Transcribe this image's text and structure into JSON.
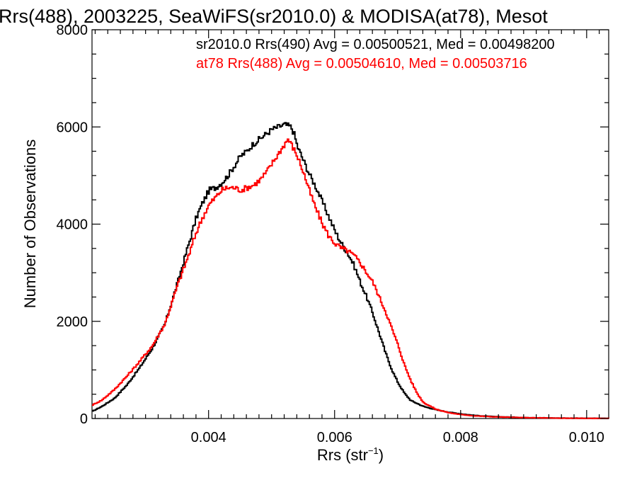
{
  "chart_data": {
    "type": "line",
    "title": "Rrs(488), 2003225, SeaWiFS(sr2010.0) & MODISA(at78), Mesot",
    "xlabel_main": "Rrs (str",
    "xlabel_sup": "−1",
    "xlabel_close": ")",
    "ylabel": "Number of Observations",
    "xlim": [
      0.00215,
      0.01035
    ],
    "ylim": [
      0,
      8000
    ],
    "x_ticks": [
      {
        "value": 0.004,
        "label": "0.004"
      },
      {
        "value": 0.006,
        "label": "0.006"
      },
      {
        "value": 0.008,
        "label": "0.008"
      },
      {
        "value": 0.01,
        "label": "0.010"
      }
    ],
    "y_ticks": [
      {
        "value": 0,
        "label": "0"
      },
      {
        "value": 2000,
        "label": "2000"
      },
      {
        "value": 4000,
        "label": "4000"
      },
      {
        "value": 6000,
        "label": "6000"
      },
      {
        "value": 8000,
        "label": "8000"
      }
    ],
    "legend_placement": "top-right",
    "series": [
      {
        "legend": "sr2010.0 Rrs(490) Avg = 0.00500521, Med = 0.00498200",
        "color": "#000000",
        "points": [
          [
            0.00215,
            150
          ],
          [
            0.0023,
            250
          ],
          [
            0.0025,
            420
          ],
          [
            0.0027,
            700
          ],
          [
            0.0029,
            1050
          ],
          [
            0.0031,
            1450
          ],
          [
            0.0033,
            1950
          ],
          [
            0.0035,
            2800
          ],
          [
            0.0036,
            3250
          ],
          [
            0.0037,
            3700
          ],
          [
            0.0038,
            4150
          ],
          [
            0.0039,
            4450
          ],
          [
            0.004,
            4700
          ],
          [
            0.0041,
            4750
          ],
          [
            0.0042,
            4850
          ],
          [
            0.0043,
            5000
          ],
          [
            0.0044,
            5200
          ],
          [
            0.0045,
            5400
          ],
          [
            0.0046,
            5500
          ],
          [
            0.0047,
            5650
          ],
          [
            0.0048,
            5750
          ],
          [
            0.0049,
            5850
          ],
          [
            0.005,
            5950
          ],
          [
            0.0051,
            6000
          ],
          [
            0.0052,
            6050
          ],
          [
            0.0053,
            6000
          ],
          [
            0.00535,
            5850
          ],
          [
            0.0054,
            5600
          ],
          [
            0.0055,
            5300
          ],
          [
            0.0056,
            5000
          ],
          [
            0.0057,
            4750
          ],
          [
            0.0058,
            4450
          ],
          [
            0.0059,
            4150
          ],
          [
            0.006,
            3850
          ],
          [
            0.0061,
            3600
          ],
          [
            0.0062,
            3400
          ],
          [
            0.0063,
            3150
          ],
          [
            0.0064,
            2800
          ],
          [
            0.0065,
            2500
          ],
          [
            0.0066,
            2150
          ],
          [
            0.0067,
            1750
          ],
          [
            0.0068,
            1350
          ],
          [
            0.0069,
            1000
          ],
          [
            0.007,
            730
          ],
          [
            0.0071,
            520
          ],
          [
            0.0072,
            370
          ],
          [
            0.0074,
            250
          ],
          [
            0.0076,
            180
          ],
          [
            0.0078,
            130
          ],
          [
            0.008,
            95
          ],
          [
            0.0082,
            65
          ],
          [
            0.0085,
            40
          ],
          [
            0.009,
            20
          ],
          [
            0.0095,
            10
          ],
          [
            0.01,
            5
          ],
          [
            0.01035,
            3
          ]
        ]
      },
      {
        "legend": "at78 Rrs(488) Avg = 0.00504610, Med = 0.00503716",
        "color": "#ff0000",
        "points": [
          [
            0.00215,
            280
          ],
          [
            0.0023,
            380
          ],
          [
            0.0025,
            600
          ],
          [
            0.0027,
            880
          ],
          [
            0.0029,
            1180
          ],
          [
            0.0031,
            1500
          ],
          [
            0.0033,
            1950
          ],
          [
            0.0035,
            2750
          ],
          [
            0.0036,
            3100
          ],
          [
            0.0037,
            3450
          ],
          [
            0.0038,
            3850
          ],
          [
            0.0039,
            4150
          ],
          [
            0.004,
            4400
          ],
          [
            0.0041,
            4550
          ],
          [
            0.0042,
            4700
          ],
          [
            0.0043,
            4750
          ],
          [
            0.0044,
            4750
          ],
          [
            0.0045,
            4700
          ],
          [
            0.0046,
            4750
          ],
          [
            0.0047,
            4800
          ],
          [
            0.0048,
            4900
          ],
          [
            0.0049,
            5050
          ],
          [
            0.005,
            5250
          ],
          [
            0.0051,
            5450
          ],
          [
            0.0052,
            5650
          ],
          [
            0.00525,
            5750
          ],
          [
            0.0053,
            5650
          ],
          [
            0.0054,
            5400
          ],
          [
            0.0055,
            5050
          ],
          [
            0.0056,
            4650
          ],
          [
            0.0057,
            4300
          ],
          [
            0.0058,
            4000
          ],
          [
            0.0059,
            3750
          ],
          [
            0.006,
            3600
          ],
          [
            0.0061,
            3500
          ],
          [
            0.0062,
            3450
          ],
          [
            0.0063,
            3350
          ],
          [
            0.0064,
            3200
          ],
          [
            0.0065,
            3000
          ],
          [
            0.0066,
            2800
          ],
          [
            0.0067,
            2500
          ],
          [
            0.0068,
            2200
          ],
          [
            0.0069,
            1850
          ],
          [
            0.007,
            1500
          ],
          [
            0.0071,
            1100
          ],
          [
            0.0072,
            780
          ],
          [
            0.0073,
            520
          ],
          [
            0.0074,
            330
          ],
          [
            0.0076,
            190
          ],
          [
            0.0078,
            120
          ],
          [
            0.008,
            80
          ],
          [
            0.0082,
            55
          ],
          [
            0.0085,
            35
          ],
          [
            0.009,
            18
          ],
          [
            0.0095,
            8
          ],
          [
            0.01,
            4
          ],
          [
            0.01035,
            2
          ]
        ]
      }
    ]
  }
}
